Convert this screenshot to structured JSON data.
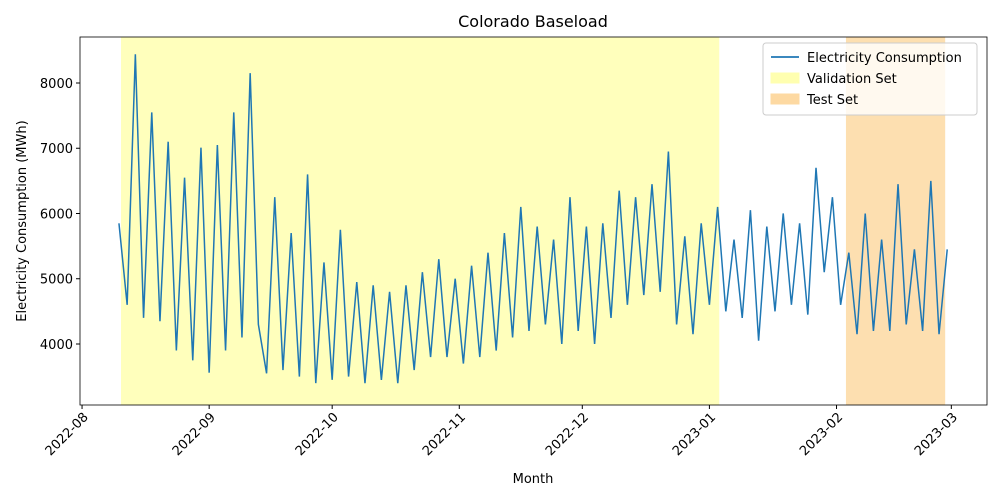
{
  "chart_data": {
    "type": "line",
    "title": "Colorado Baseload",
    "x_label": "Month",
    "y_label": "Electricity Consumption (MWh)",
    "x": [
      9,
      11,
      13,
      15,
      17,
      19,
      21,
      23,
      25,
      27,
      29,
      31,
      33,
      35,
      37,
      39,
      41,
      43,
      45,
      47,
      49,
      51,
      53,
      55,
      57,
      59,
      61,
      63,
      65,
      67,
      69,
      71,
      73,
      75,
      77,
      79,
      81,
      83,
      85,
      87,
      89,
      91,
      93,
      95,
      97,
      99,
      101,
      103,
      105,
      107,
      109,
      111,
      113,
      115,
      117,
      119,
      121,
      123,
      125,
      127,
      129,
      131,
      133,
      135,
      137,
      139,
      141,
      143,
      145,
      147,
      149,
      151,
      153,
      155,
      157,
      159,
      161,
      163,
      165,
      167,
      169,
      171,
      173,
      175,
      177,
      179,
      181,
      183,
      185,
      187,
      189,
      191,
      193,
      195,
      197,
      199,
      201,
      203,
      205,
      207,
      209,
      211
    ],
    "series": [
      {
        "name": "Electricity Consumption",
        "color": "#1f77b4",
        "values": [
          5850,
          4600,
          8440,
          4400,
          7550,
          4350,
          7100,
          3900,
          6550,
          3750,
          7010,
          3560,
          7050,
          3900,
          7550,
          4100,
          8150,
          4300,
          3550,
          6250,
          3600,
          5700,
          3500,
          6600,
          3400,
          5250,
          3450,
          5750,
          3500,
          4950,
          3400,
          4900,
          3450,
          4800,
          3400,
          4900,
          3600,
          5100,
          3800,
          5300,
          3800,
          5000,
          3700,
          5200,
          3800,
          5400,
          3900,
          5700,
          4100,
          6100,
          4200,
          5800,
          4300,
          5600,
          4000,
          6250,
          4200,
          5800,
          4000,
          5850,
          4400,
          6350,
          4600,
          6250,
          4750,
          6450,
          4800,
          6950,
          4300,
          5650,
          4150,
          5850,
          4600,
          6100,
          4500,
          5600,
          4400,
          6050,
          4050,
          5800,
          4500,
          6000,
          4600,
          5850,
          4450,
          6700,
          5100,
          6250,
          4600,
          5400,
          4150,
          6000,
          4200,
          5600,
          4200,
          6450,
          4300,
          5450,
          4200,
          6500,
          4150,
          5450
        ]
      }
    ],
    "regions": [
      {
        "name": "Validation Set",
        "color": "#ffffb0",
        "x": [
          9.5,
          155.4
        ]
      },
      {
        "name": "Test Set",
        "color": "#fdd9a2",
        "x": [
          186.3,
          210.5
        ]
      }
    ],
    "xlim": [
      -0.5,
      220.7
    ],
    "xticks": [
      {
        "value": 0,
        "label": "2022-08"
      },
      {
        "value": 31,
        "label": "2022-09"
      },
      {
        "value": 61,
        "label": "2022-10"
      },
      {
        "value": 92,
        "label": "2022-11"
      },
      {
        "value": 122,
        "label": "2022-12"
      },
      {
        "value": 153,
        "label": "2023-01"
      },
      {
        "value": 184,
        "label": "2023-02"
      },
      {
        "value": 212,
        "label": "2023-03"
      }
    ],
    "ylim": [
      3065,
      8705
    ],
    "yticks": [
      4000,
      5000,
      6000,
      7000,
      8000
    ],
    "legend": "upper right"
  }
}
